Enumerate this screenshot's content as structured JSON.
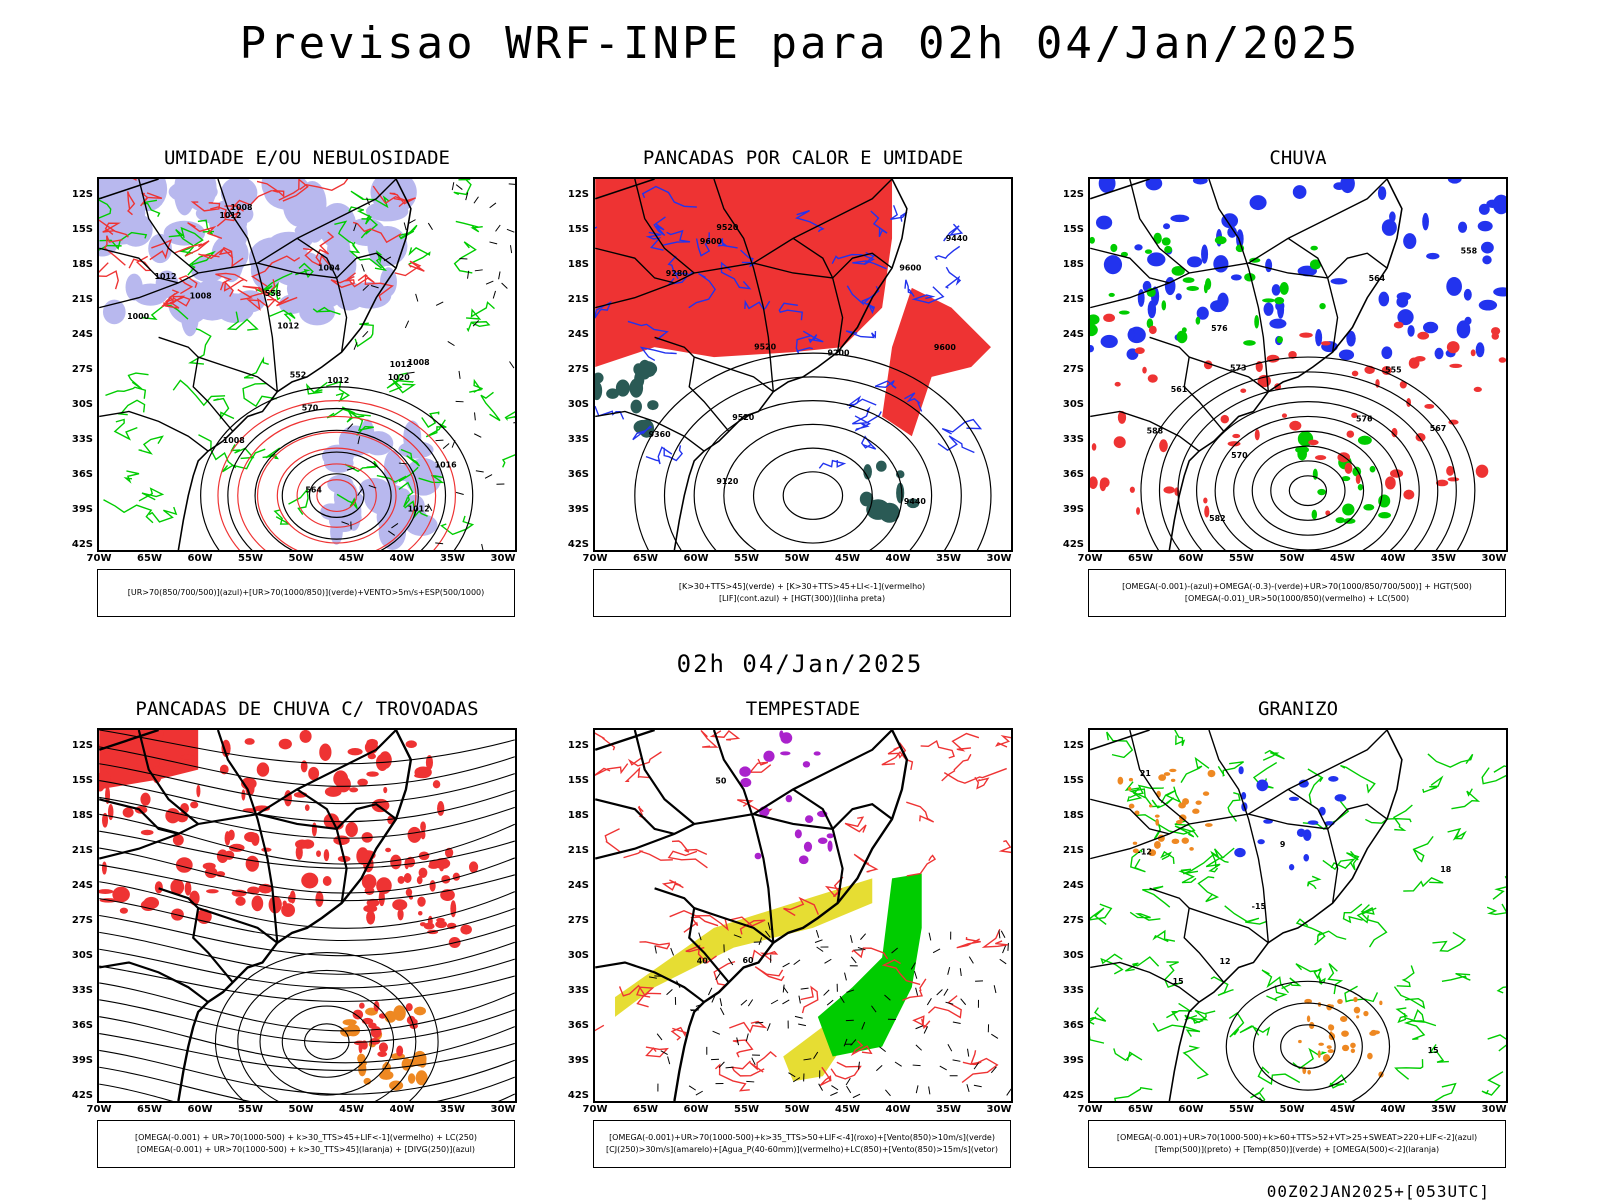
{
  "title": "Previsao WRF-INPE  para 02h 04/Jan/2025",
  "mid_date": "02h 04/Jan/2025",
  "run_time": "00Z02JAN2025+[053UTC]",
  "lat_labels": [
    "12S",
    "15S",
    "18S",
    "21S",
    "24S",
    "27S",
    "30S",
    "33S",
    "36S",
    "39S",
    "42S"
  ],
  "lon_labels": [
    "70W",
    "65W",
    "60W",
    "55W",
    "50W",
    "45W",
    "40W",
    "35W",
    "30W"
  ],
  "colors": {
    "blue": "#2233ee",
    "green": "#00cc00",
    "red": "#ee3333",
    "orange": "#ee8822",
    "yellow": "#e6dd33",
    "purple": "#aa22cc",
    "lavender": "#b8b8ee",
    "darkteal": "#2a5a55"
  },
  "panels": [
    {
      "title": "UMIDADE E/OU NEBULOSIDADE",
      "legend": [
        "[UR>70(850/700/500)](azul)+[UR>70(1000/850)](verde)+VENTO>5m/s+ESP(500/1000)"
      ],
      "contour_labels": [
        "1008",
        "1012",
        "1012",
        "1012",
        "1008",
        "1004",
        "1000",
        "1012",
        "1016",
        "1020",
        "1008",
        "1012",
        "1012",
        "1008",
        "570",
        "564",
        "558",
        "552"
      ]
    },
    {
      "title": "PANCADAS POR CALOR E UMIDADE",
      "legend": [
        "[K>30+TTS>45](verde) + [K>30+TTS>45+LI<-1](vermelho)",
        "[LIF](cont.azul) + [HGT(300)](linha preta)"
      ],
      "contour_labels": [
        "9600",
        "9600",
        "9520",
        "9440",
        "9360",
        "9280",
        "9200",
        "9120",
        "9520",
        "9440",
        "9600",
        "9520"
      ]
    },
    {
      "title": "CHUVA",
      "legend": [
        "[OMEGA(-0.001)-(azul)+OMEGA(-0.3)-(verde)+UR>70(1000/850/700/500)] + HGT(500)",
        "[OMEGA(-0.01)_UR>50(1000/850)(vermelho) + LC(500)"
      ],
      "contour_labels": [
        "582",
        "576",
        "573",
        "570",
        "567",
        "564",
        "561",
        "558",
        "555",
        "588",
        "576"
      ]
    },
    {
      "title": "PANCADAS DE CHUVA C/ TROVOADAS",
      "legend": [
        "[OMEGA(-0.001) + UR>70(1000-500) + k>30_TTS>45+LIF<-1](vermelho) + LC(250)",
        "[OMEGA(-0.001) + UR>70(1000-500) + k>30_TTS>45](laranja) + [DIVG(250)](azul)"
      ],
      "contour_labels": []
    },
    {
      "title": "TEMPESTADE",
      "legend": [
        "[OMEGA(-0.001)+UR>70(1000-500)+k>35_TTS>50+LIF<-4](roxo)+[Vento(850)>10m/s](verde)",
        "[CJ(250)>30m/s](amarelo)+[Agua_P(40-60mm)](vermelho)+LC(850)+[Vento(850)>15m/s](vetor)"
      ],
      "contour_labels": [
        "60",
        "50",
        "40"
      ]
    },
    {
      "title": "GRANIZO",
      "legend": [
        "[OMEGA(-0.001)+UR>70(1000-500)+k>60+TTS>52+VT>25+SWEAT>220+LIF<-2](azul)",
        "[Temp(500)](preto) + [Temp(850)](verde) + [OMEGA(500)<-2](laranja)"
      ],
      "contour_labels": [
        "-15",
        "-12",
        "15",
        "18",
        "12",
        "9",
        "15",
        "21"
      ]
    }
  ]
}
